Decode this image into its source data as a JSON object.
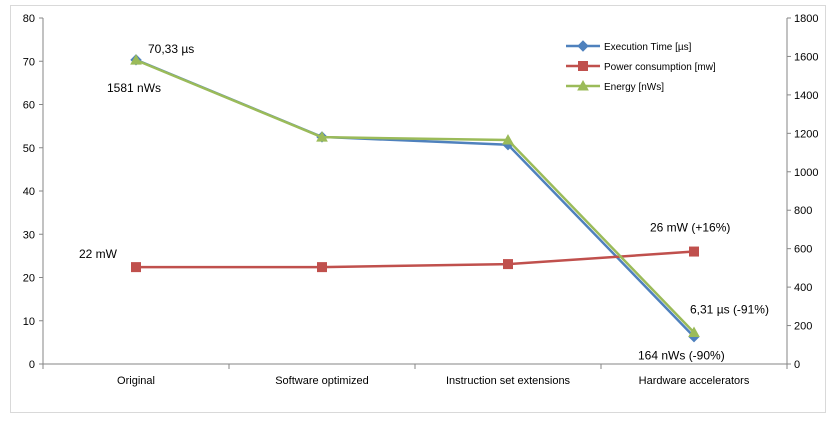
{
  "chart_data": {
    "type": "line",
    "categories": [
      "Original",
      "Software optimized",
      "Instruction set extensions",
      "Hardware accelerators"
    ],
    "y_left": {
      "ylim": [
        0,
        80
      ],
      "ticks": [
        0,
        10,
        20,
        30,
        40,
        50,
        60,
        70,
        80
      ]
    },
    "y_right": {
      "ylim": [
        0,
        1800
      ],
      "ticks": [
        0,
        200,
        400,
        600,
        800,
        1000,
        1200,
        1400,
        1600,
        1800
      ]
    },
    "grid": "horizontal-lines-off",
    "legend_position": "top-right",
    "series": [
      {
        "name": "Execution Time [µs]",
        "axis": "left",
        "values": [
          70.33,
          52.5,
          50.7,
          6.31
        ],
        "color": "#4f81bd",
        "marker": "diamond"
      },
      {
        "name": "Power consumption [mw]",
        "axis": "left",
        "values": [
          22.4,
          22.4,
          23.1,
          26.0
        ],
        "color": "#c0504d",
        "marker": "square"
      },
      {
        "name": "Energy [nWs]",
        "axis": "right",
        "values": [
          1581,
          1180,
          1165,
          164
        ],
        "color": "#9bbb59",
        "marker": "triangle"
      }
    ],
    "annotations": [
      {
        "text": "70,33 µs",
        "category": "Original",
        "series": "Execution Time [µs]"
      },
      {
        "text": "1581 nWs",
        "category": "Original",
        "series": "Energy [nWs]"
      },
      {
        "text": "22 mW",
        "category": "Original",
        "series": "Power consumption [mw]"
      },
      {
        "text": "26 mW (+16%)",
        "category": "Hardware accelerators",
        "series": "Power consumption [mw]"
      },
      {
        "text": "6,31 µs (-91%)",
        "category": "Hardware accelerators",
        "series": "Execution Time [µs]"
      },
      {
        "text": "164 nWs (-90%)",
        "category": "Hardware accelerators",
        "series": "Energy [nWs]"
      }
    ]
  }
}
